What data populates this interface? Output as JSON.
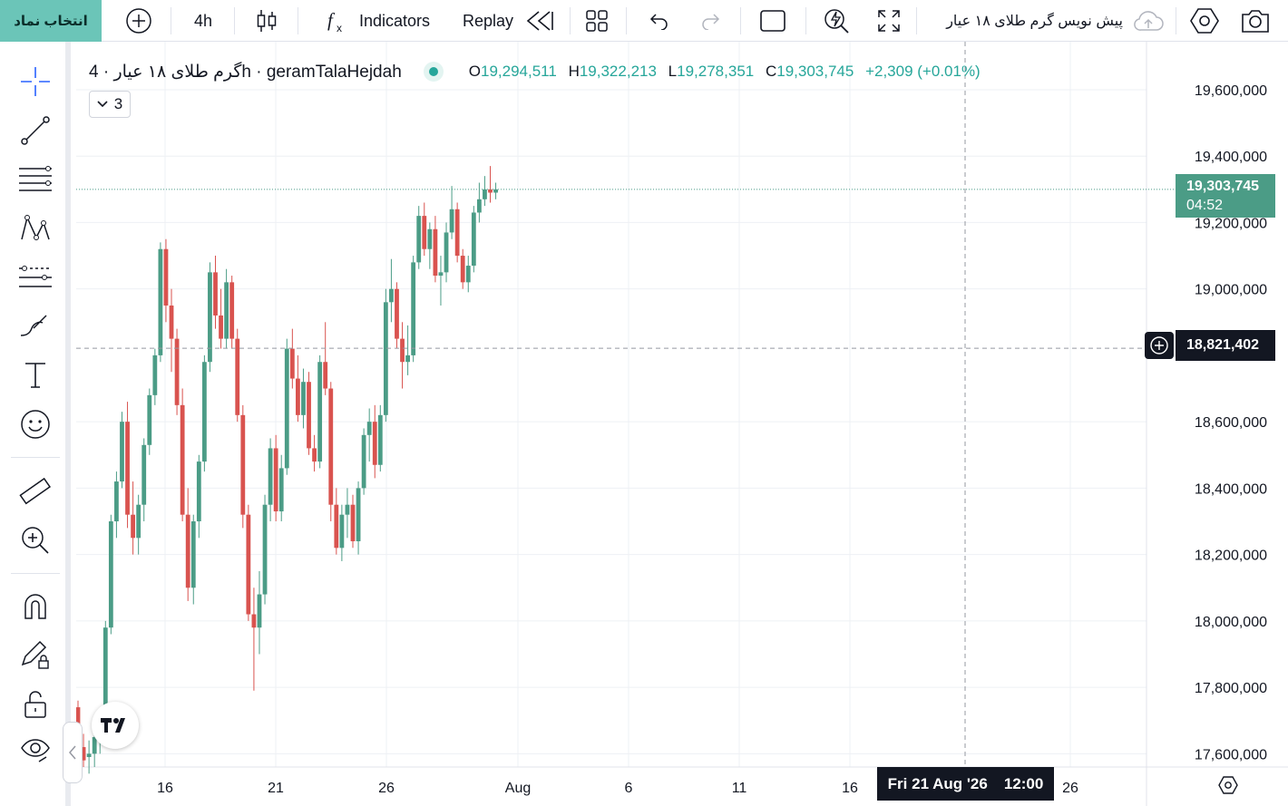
{
  "toolbar": {
    "symbol_button": "انتخاب نماد",
    "interval": "4h",
    "indicators_label": "Indicators",
    "replay_label": "Replay",
    "symbol_title": "پیش نویس گرم طلای ۱۸ عیار"
  },
  "legend": {
    "title": "گرم طلای ۱۸ عیار · 4h · geramTalaHejdah",
    "open_label": "O",
    "open": "19,294,511",
    "high_label": "H",
    "high": "19,322,213",
    "low_label": "L",
    "low": "19,278,351",
    "close_label": "C",
    "close": "19,303,745",
    "change": "+2,309 (+0.01%)",
    "indicator_count": "3"
  },
  "colors": {
    "up": "#4b9c86",
    "down": "#d9534f",
    "accent": "#6bc5b8",
    "dark": "#131722"
  },
  "price_axis": {
    "labels": [
      "19,600,000",
      "19,400,000",
      "19,200,000",
      "19,000,000",
      "18,600,000",
      "18,400,000",
      "18,200,000",
      "18,000,000",
      "17,800,000",
      "17,600,000"
    ],
    "last_price": "19,303,745",
    "countdown": "04:52",
    "crosshair_price": "18,821,402"
  },
  "time_axis": {
    "labels": [
      "16",
      "21",
      "26",
      "Aug",
      "6",
      "11",
      "16",
      "26"
    ],
    "crosshair_date": "Fri 21 Aug '26",
    "crosshair_time": "12:00"
  },
  "chart_data": {
    "type": "candlestick",
    "y_unit": "price",
    "ylim": [
      17560000,
      19690000
    ],
    "grid": true,
    "candles": [
      [
        17740000,
        17760000,
        17620000,
        17630000
      ],
      [
        17620000,
        17660000,
        17560000,
        17580000
      ],
      [
        17590000,
        17640000,
        17540000,
        17600000
      ],
      [
        17600000,
        17680000,
        17560000,
        17650000
      ],
      [
        17650000,
        17720000,
        17600000,
        17700000
      ],
      [
        17700000,
        18000000,
        17680000,
        17980000
      ],
      [
        17980000,
        18320000,
        17960000,
        18300000
      ],
      [
        18300000,
        18450000,
        18250000,
        18420000
      ],
      [
        18420000,
        18630000,
        18400000,
        18600000
      ],
      [
        18600000,
        18660000,
        18280000,
        18320000
      ],
      [
        18320000,
        18420000,
        18200000,
        18250000
      ],
      [
        18250000,
        18380000,
        18200000,
        18350000
      ],
      [
        18350000,
        18550000,
        18300000,
        18530000
      ],
      [
        18530000,
        18700000,
        18500000,
        18680000
      ],
      [
        18680000,
        18820000,
        18650000,
        18800000
      ],
      [
        18800000,
        19140000,
        18780000,
        19120000
      ],
      [
        19120000,
        19150000,
        18900000,
        18950000
      ],
      [
        18950000,
        19000000,
        18750000,
        18850000
      ],
      [
        18850000,
        18880000,
        18620000,
        18650000
      ],
      [
        18650000,
        18700000,
        18300000,
        18320000
      ],
      [
        18320000,
        18400000,
        18060000,
        18100000
      ],
      [
        18100000,
        18320000,
        18050000,
        18300000
      ],
      [
        18300000,
        18500000,
        18250000,
        18480000
      ],
      [
        18480000,
        18800000,
        18450000,
        18780000
      ],
      [
        18780000,
        19080000,
        18750000,
        19050000
      ],
      [
        19050000,
        19100000,
        18880000,
        18920000
      ],
      [
        18920000,
        19000000,
        18820000,
        18850000
      ],
      [
        18850000,
        19060000,
        18820000,
        19020000
      ],
      [
        19020000,
        19040000,
        18820000,
        18850000
      ],
      [
        18850000,
        18880000,
        18600000,
        18620000
      ],
      [
        18620000,
        18650000,
        18280000,
        18320000
      ],
      [
        18320000,
        18350000,
        18000000,
        18020000
      ],
      [
        18020000,
        18100000,
        17790000,
        17980000
      ],
      [
        17980000,
        18150000,
        17900000,
        18080000
      ],
      [
        18080000,
        18380000,
        18050000,
        18350000
      ],
      [
        18350000,
        18550000,
        18300000,
        18520000
      ],
      [
        18520000,
        18560000,
        18300000,
        18330000
      ],
      [
        18330000,
        18500000,
        18300000,
        18460000
      ],
      [
        18460000,
        18850000,
        18440000,
        18820000
      ],
      [
        18820000,
        18880000,
        18700000,
        18730000
      ],
      [
        18730000,
        18800000,
        18600000,
        18620000
      ],
      [
        18620000,
        18760000,
        18580000,
        18720000
      ],
      [
        18720000,
        18750000,
        18500000,
        18520000
      ],
      [
        18520000,
        18560000,
        18450000,
        18480000
      ],
      [
        18480000,
        18800000,
        18460000,
        18780000
      ],
      [
        18780000,
        18900000,
        18680000,
        18700000
      ],
      [
        18700000,
        18720000,
        18300000,
        18350000
      ],
      [
        18350000,
        18400000,
        18200000,
        18220000
      ],
      [
        18220000,
        18350000,
        18180000,
        18320000
      ],
      [
        18320000,
        18400000,
        18250000,
        18350000
      ],
      [
        18350000,
        18380000,
        18220000,
        18240000
      ],
      [
        18240000,
        18420000,
        18200000,
        18400000
      ],
      [
        18400000,
        18580000,
        18380000,
        18560000
      ],
      [
        18560000,
        18640000,
        18480000,
        18600000
      ],
      [
        18600000,
        18650000,
        18430000,
        18470000
      ],
      [
        18470000,
        18650000,
        18450000,
        18620000
      ],
      [
        18620000,
        19000000,
        18600000,
        18960000
      ],
      [
        18960000,
        19090000,
        18900000,
        19000000
      ],
      [
        19000000,
        19020000,
        18820000,
        18850000
      ],
      [
        18850000,
        18900000,
        18700000,
        18780000
      ],
      [
        18780000,
        18890000,
        18740000,
        18800000
      ],
      [
        18800000,
        19100000,
        18780000,
        19080000
      ],
      [
        19080000,
        19250000,
        19060000,
        19220000
      ],
      [
        19220000,
        19260000,
        19100000,
        19120000
      ],
      [
        19120000,
        19200000,
        19060000,
        19180000
      ],
      [
        19180000,
        19220000,
        19020000,
        19040000
      ],
      [
        19040000,
        19100000,
        18950000,
        19050000
      ],
      [
        19050000,
        19200000,
        19020000,
        19170000
      ],
      [
        19170000,
        19310000,
        19150000,
        19240000
      ],
      [
        19240000,
        19260000,
        19080000,
        19100000
      ],
      [
        19100000,
        19120000,
        19000000,
        19020000
      ],
      [
        19020000,
        19100000,
        18990000,
        19070000
      ],
      [
        19070000,
        19250000,
        19050000,
        19230000
      ],
      [
        19230000,
        19320000,
        19200000,
        19270000
      ],
      [
        19270000,
        19340000,
        19250000,
        19300000
      ],
      [
        19300000,
        19370000,
        19260000,
        19290000
      ],
      [
        19290000,
        19320000,
        19270000,
        19300000
      ]
    ]
  }
}
